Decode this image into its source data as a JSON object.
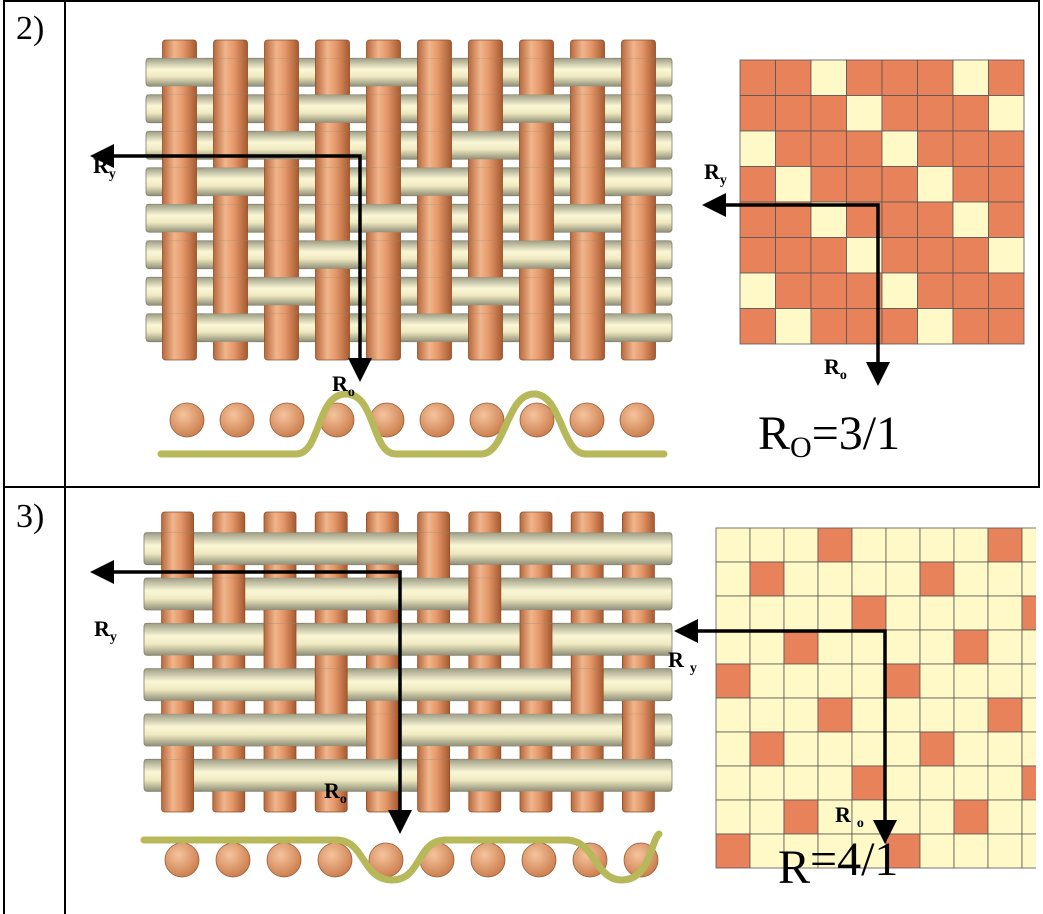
{
  "rows": [
    {
      "label": "2)",
      "warp_axis_label": "R",
      "warp_axis_sub": "o",
      "weft_axis_label": "R",
      "weft_axis_sub": "y",
      "formula_main": "R",
      "formula_sub": "O",
      "formula_rest": "=3/1",
      "colors": {
        "warp": "#e19a6c",
        "weft": "#f5f0c2",
        "grid_dark": "#e8825a",
        "grid_light": "#fff9c8",
        "crimp": "#b7b85a"
      }
    },
    {
      "label": "3)",
      "warp_axis_label": "R",
      "warp_axis_sub": "o",
      "weft_axis_label": "R",
      "weft_axis_sub": "y",
      "formula_main": "R",
      "formula_sub": "",
      "formula_rest": "=4/1",
      "colors": {
        "warp": "#e19a6c",
        "weft": "#f5f0c2",
        "grid_dark": "#e8825a",
        "grid_light": "#fff9c8",
        "crimp": "#b7b85a"
      }
    }
  ]
}
